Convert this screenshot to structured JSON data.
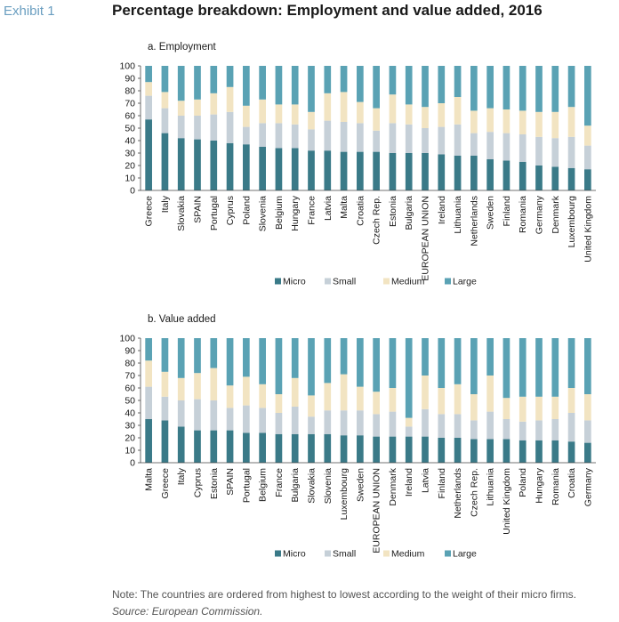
{
  "header": {
    "exhibit": "Exhibit 1",
    "title": "Percentage breakdown: Employment and value added, 2016"
  },
  "footer": {
    "note": "Note: The countries are ordered from highest to lowest according to the weight of their micro firms.",
    "source": "Source: European Commission."
  },
  "colors": {
    "Micro": "#3a7a88",
    "Small": "#c6d0d8",
    "Medium": "#f2e4c2",
    "Large": "#5aa2b4"
  },
  "chart_data": [
    {
      "type": "bar",
      "stacked": true,
      "title": "a. Employment",
      "ylim": [
        0,
        100
      ],
      "yticks": [
        0,
        10,
        20,
        30,
        40,
        50,
        60,
        70,
        80,
        90,
        100
      ],
      "legend": "bottom",
      "categories": [
        "Greece",
        "Italy",
        "Slovakia",
        "SPAIN",
        "Portugal",
        "Cyprus",
        "Poland",
        "Slovenia",
        "Belgium",
        "Hungary",
        "France",
        "Latvia",
        "Malta",
        "Croatia",
        "Czech Rep.",
        "Estonia",
        "Bulgaria",
        "EUROPEAN UNION",
        "Ireland",
        "Lithuania",
        "Netherlands",
        "Sweden",
        "Finland",
        "Romania",
        "Germany",
        "Denmark",
        "Luxembourg",
        "United Kingdom"
      ],
      "series": [
        {
          "name": "Micro",
          "values": [
            57,
            46,
            42,
            41,
            40,
            38,
            37,
            35,
            34,
            34,
            32,
            32,
            31,
            31,
            31,
            30,
            30,
            30,
            29,
            28,
            28,
            25,
            24,
            23,
            20,
            19,
            18,
            17
          ]
        },
        {
          "name": "Small",
          "values": [
            19,
            20,
            18,
            19,
            21,
            25,
            14,
            19,
            20,
            19,
            17,
            24,
            24,
            23,
            17,
            24,
            23,
            20,
            22,
            25,
            18,
            22,
            22,
            22,
            23,
            23,
            25,
            19
          ]
        },
        {
          "name": "Medium",
          "values": [
            11,
            13,
            12,
            13,
            17,
            20,
            17,
            19,
            15,
            16,
            14,
            22,
            24,
            17,
            18,
            23,
            16,
            17,
            19,
            22,
            18,
            19,
            19,
            19,
            20,
            21,
            24,
            16
          ]
        },
        {
          "name": "Large",
          "values": [
            13,
            21,
            28,
            27,
            22,
            17,
            32,
            27,
            31,
            31,
            37,
            22,
            21,
            29,
            34,
            23,
            31,
            33,
            30,
            25,
            36,
            34,
            35,
            36,
            37,
            37,
            33,
            48
          ]
        }
      ]
    },
    {
      "type": "bar",
      "stacked": true,
      "title": "b. Value added",
      "ylim": [
        0,
        100
      ],
      "yticks": [
        0,
        10,
        20,
        30,
        40,
        50,
        60,
        70,
        80,
        90,
        100
      ],
      "legend": "bottom",
      "categories": [
        "Malta",
        "Greece",
        "Italy",
        "Cyprus",
        "Estonia",
        "SPAIN",
        "Portugal",
        "Belgium",
        "France",
        "Bulgaria",
        "Slovakia",
        "Slovenia",
        "Luxembourg",
        "Sweden",
        "EUROPEAN UNION",
        "Denmark",
        "Ireland",
        "Latvia",
        "Finland",
        "Netherlands",
        "Czech Rep.",
        "Lithuania",
        "United Kingdom",
        "Poland",
        "Hungary",
        "Romania",
        "Croatia",
        "Germany"
      ],
      "series": [
        {
          "name": "Micro",
          "values": [
            35,
            34,
            29,
            26,
            26,
            26,
            24,
            24,
            23,
            23,
            23,
            23,
            22,
            22,
            21,
            21,
            21,
            21,
            20,
            20,
            19,
            19,
            19,
            18,
            18,
            18,
            17,
            16
          ]
        },
        {
          "name": "Small",
          "values": [
            26,
            19,
            21,
            25,
            24,
            18,
            22,
            20,
            17,
            22,
            14,
            19,
            20,
            20,
            18,
            20,
            8,
            22,
            19,
            19,
            15,
            22,
            16,
            15,
            16,
            17,
            23,
            18
          ]
        },
        {
          "name": "Medium",
          "values": [
            21,
            20,
            18,
            21,
            26,
            18,
            23,
            19,
            15,
            23,
            17,
            22,
            29,
            19,
            18,
            19,
            7,
            27,
            21,
            24,
            21,
            29,
            17,
            20,
            19,
            18,
            20,
            21
          ]
        },
        {
          "name": "Large",
          "values": [
            18,
            27,
            32,
            28,
            24,
            38,
            31,
            37,
            45,
            32,
            46,
            36,
            29,
            39,
            43,
            40,
            64,
            30,
            40,
            37,
            45,
            30,
            48,
            47,
            47,
            47,
            40,
            45
          ]
        }
      ]
    }
  ]
}
